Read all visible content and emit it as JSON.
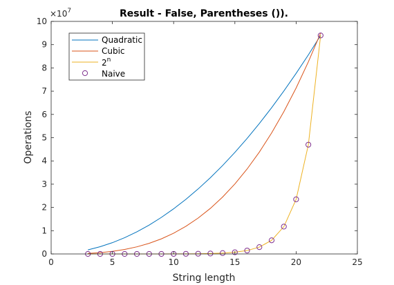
{
  "chart_data": {
    "type": "line",
    "title": "Result - False, Parentheses ()).",
    "xlabel": "String length",
    "ylabel": "Operations",
    "xlim": [
      0,
      25
    ],
    "ylim": [
      0,
      10
    ],
    "y_multiplier": "×10",
    "y_multiplier_exp": "7",
    "xticks": [
      "0",
      "5",
      "10",
      "15",
      "20",
      "25"
    ],
    "yticks": [
      "0",
      "1",
      "2",
      "3",
      "4",
      "5",
      "6",
      "7",
      "8",
      "9",
      "10"
    ],
    "grid": false,
    "legend_position": "top-left",
    "x": [
      3,
      4,
      5,
      6,
      7,
      8,
      9,
      10,
      11,
      12,
      13,
      14,
      15,
      16,
      17,
      18,
      19,
      20,
      21,
      22
    ],
    "series": [
      {
        "name": "Quadratic",
        "style": "line",
        "color": "#0072BD",
        "values": [
          0.175,
          0.311,
          0.485,
          0.699,
          0.951,
          1.242,
          1.572,
          1.941,
          2.348,
          2.795,
          3.28,
          3.804,
          4.367,
          4.969,
          5.61,
          6.289,
          7.008,
          7.765,
          8.561,
          9.396
        ]
      },
      {
        "name": "Cubic",
        "style": "line",
        "color": "#D95319",
        "values": [
          0.024,
          0.057,
          0.111,
          0.193,
          0.306,
          0.457,
          0.65,
          0.892,
          1.188,
          1.542,
          1.96,
          2.448,
          3.011,
          3.654,
          4.383,
          5.203,
          6.119,
          7.137,
          8.261,
          9.497
        ]
      },
      {
        "name": "2",
        "name_superscript": "n",
        "style": "line",
        "color": "#EDB120",
        "values": [
          0.0,
          0.0,
          0.0,
          0.0,
          0.0,
          0.001,
          0.001,
          0.002,
          0.005,
          0.009,
          0.018,
          0.037,
          0.073,
          0.147,
          0.294,
          0.587,
          1.175,
          2.349,
          4.698,
          9.396
        ]
      },
      {
        "name": "Naive",
        "style": "markers",
        "marker": "circle",
        "color": "#7E2F8E",
        "values": [
          0.0,
          0.0,
          0.0,
          0.0,
          0.0,
          0.001,
          0.001,
          0.002,
          0.005,
          0.009,
          0.018,
          0.037,
          0.073,
          0.147,
          0.294,
          0.587,
          1.175,
          2.349,
          4.698,
          9.396
        ]
      }
    ]
  }
}
